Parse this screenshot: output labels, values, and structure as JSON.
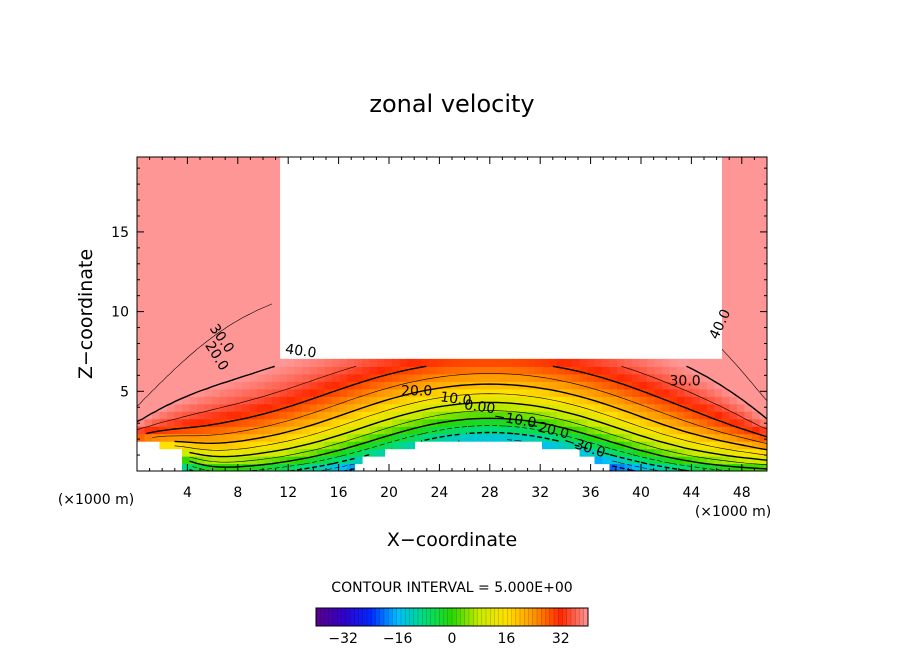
{
  "chart_data": {
    "type": "heatmap",
    "title": "zonal velocity",
    "xlabel": "X−coordinate",
    "ylabel": "Z−coordinate",
    "x_unit_left": "(×1000 m)",
    "x_unit_right": "(×1000 m)",
    "xlim": [
      0,
      50
    ],
    "ylim": [
      0,
      19.7
    ],
    "x_ticks": [
      4,
      8,
      12,
      16,
      20,
      24,
      28,
      32,
      36,
      40,
      44,
      48
    ],
    "y_ticks": [
      5,
      10,
      15
    ],
    "contour_interval_text": "CONTOUR INTERVAL = 5.000E+00",
    "colorbar": {
      "range": [
        -40,
        40
      ],
      "ticks": [
        -32,
        -16,
        0,
        16,
        32
      ],
      "tick_labels": [
        "−32",
        "−16",
        "0",
        "16",
        "32"
      ]
    },
    "contour_labels": [
      {
        "text": "40.0",
        "x": 13,
        "z": 7.5,
        "angle": 8
      },
      {
        "text": "30.0",
        "x": 6.7,
        "z": 8.3,
        "angle": 55
      },
      {
        "text": "20.0",
        "x": 6.3,
        "z": 7.2,
        "angle": 58
      },
      {
        "text": "40.0",
        "x": 46.3,
        "z": 9.2,
        "angle": -65
      },
      {
        "text": "30.0",
        "x": 43.5,
        "z": 5.6,
        "angle": 0
      },
      {
        "text": "20.0",
        "x": 22.2,
        "z": 5.0,
        "angle": 0
      },
      {
        "text": "10.0",
        "x": 25.3,
        "z": 4.5,
        "angle": 8
      },
      {
        "text": "0.00",
        "x": 27.2,
        "z": 4.0,
        "angle": 8
      },
      {
        "text": "−10.0",
        "x": 30.0,
        "z": 3.2,
        "angle": 10
      },
      {
        "text": "−20.0",
        "x": 32.6,
        "z": 2.6,
        "angle": 14
      },
      {
        "text": "−30.0",
        "x": 35.5,
        "z": 1.5,
        "angle": 18
      }
    ]
  }
}
